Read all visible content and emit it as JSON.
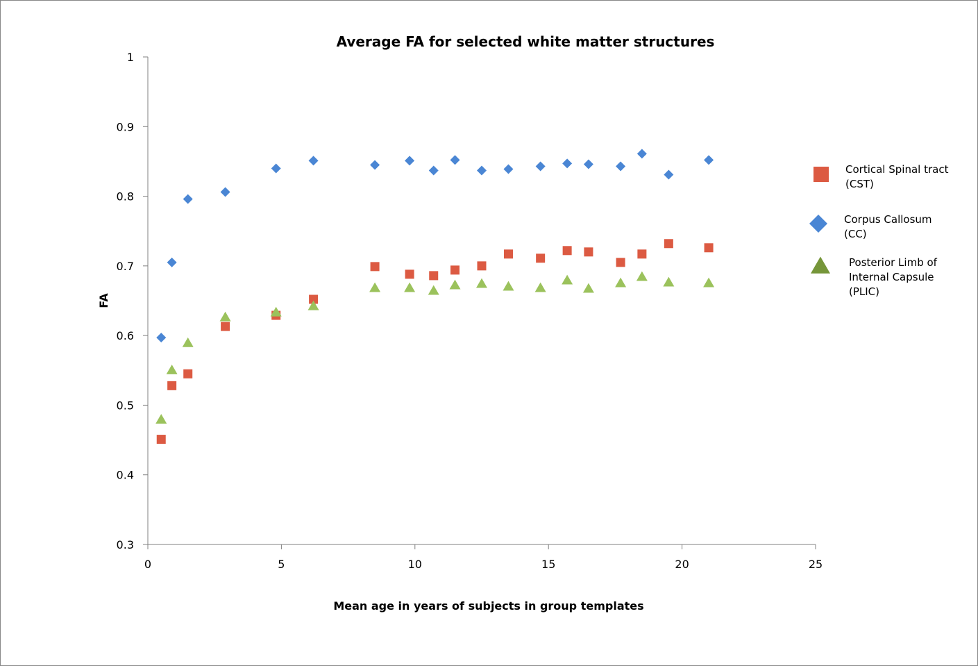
{
  "chart_data": {
    "type": "scatter",
    "title": "Average FA for selected white matter structures",
    "xlabel": "Mean age in years of subjects in group templates",
    "ylabel": "FA",
    "xlim": [
      0,
      25
    ],
    "ylim": [
      0.3,
      1
    ],
    "x_ticks": [
      "0",
      "5",
      "10",
      "15",
      "20",
      "25"
    ],
    "y_ticks": [
      "0.3",
      "0.4",
      "0.5",
      "0.6",
      "0.7",
      "0.8",
      "0.9",
      "1"
    ],
    "grid": false,
    "legend_position": "right",
    "series": [
      {
        "name": "Cortical Spinal tract (CST)",
        "legend_lines": [
          "Cortical Spinal tract",
          "(CST)"
        ],
        "marker": "square",
        "color": "#DC5A42",
        "points": [
          [
            0.5,
            0.451
          ],
          [
            0.9,
            0.528
          ],
          [
            1.5,
            0.545
          ],
          [
            2.9,
            0.613
          ],
          [
            4.8,
            0.629
          ],
          [
            6.2,
            0.652
          ],
          [
            8.5,
            0.699
          ],
          [
            9.8,
            0.688
          ],
          [
            10.7,
            0.686
          ],
          [
            11.5,
            0.694
          ],
          [
            12.5,
            0.7
          ],
          [
            13.5,
            0.717
          ],
          [
            14.7,
            0.711
          ],
          [
            15.7,
            0.722
          ],
          [
            16.5,
            0.72
          ],
          [
            17.7,
            0.705
          ],
          [
            18.5,
            0.717
          ],
          [
            19.5,
            0.732
          ],
          [
            21.0,
            0.726
          ]
        ]
      },
      {
        "name": "Corpus Callosum (CC)",
        "legend_lines": [
          "Corpus Callosum",
          "(CC)"
        ],
        "marker": "diamond",
        "color": "#4A86D4",
        "points": [
          [
            0.5,
            0.597
          ],
          [
            0.9,
            0.705
          ],
          [
            1.5,
            0.796
          ],
          [
            2.9,
            0.806
          ],
          [
            4.8,
            0.84
          ],
          [
            6.2,
            0.851
          ],
          [
            8.5,
            0.845
          ],
          [
            9.8,
            0.851
          ],
          [
            10.7,
            0.837
          ],
          [
            11.5,
            0.852
          ],
          [
            12.5,
            0.837
          ],
          [
            13.5,
            0.839
          ],
          [
            14.7,
            0.843
          ],
          [
            15.7,
            0.847
          ],
          [
            16.5,
            0.846
          ],
          [
            17.7,
            0.843
          ],
          [
            18.5,
            0.861
          ],
          [
            19.5,
            0.831
          ],
          [
            21.0,
            0.852
          ]
        ]
      },
      {
        "name": "Posterior Limb of Internal Capsule (PLIC)",
        "legend_lines": [
          "Posterior Limb of",
          "Internal Capsule",
          "(PLIC)"
        ],
        "marker": "triangle",
        "color": "#9BC25C",
        "legend_color": "#76963A",
        "points": [
          [
            0.5,
            0.479
          ],
          [
            0.9,
            0.55
          ],
          [
            1.5,
            0.589
          ],
          [
            2.9,
            0.626
          ],
          [
            4.8,
            0.633
          ],
          [
            6.2,
            0.642
          ],
          [
            8.5,
            0.668
          ],
          [
            9.8,
            0.668
          ],
          [
            10.7,
            0.664
          ],
          [
            11.5,
            0.672
          ],
          [
            12.5,
            0.674
          ],
          [
            13.5,
            0.67
          ],
          [
            14.7,
            0.668
          ],
          [
            15.7,
            0.679
          ],
          [
            16.5,
            0.667
          ],
          [
            17.7,
            0.675
          ],
          [
            18.5,
            0.684
          ],
          [
            19.5,
            0.676
          ],
          [
            21.0,
            0.675
          ]
        ]
      }
    ]
  }
}
